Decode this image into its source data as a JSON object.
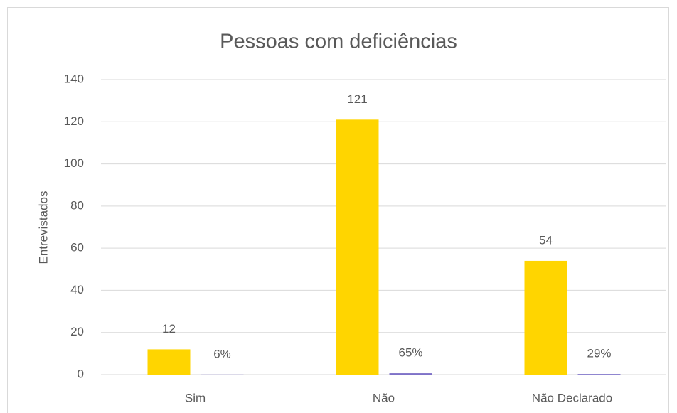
{
  "chart_data": {
    "type": "bar",
    "title": "Pessoas com deficiências",
    "y_label": "Entrevistados",
    "categories": [
      "Sim",
      "Não",
      "Não Declarado"
    ],
    "series": [
      {
        "color": "#ffd500",
        "values": [
          12,
          121,
          54
        ]
      },
      {
        "color": "#7f72c8",
        "values": [
          0.06,
          0.65,
          0.29
        ],
        "value_labels": [
          "6%",
          "65%",
          "29%"
        ]
      }
    ],
    "ylim": [
      0,
      140
    ],
    "yticks": [
      0,
      20,
      40,
      60,
      80,
      100,
      120,
      140
    ],
    "grid": true
  }
}
